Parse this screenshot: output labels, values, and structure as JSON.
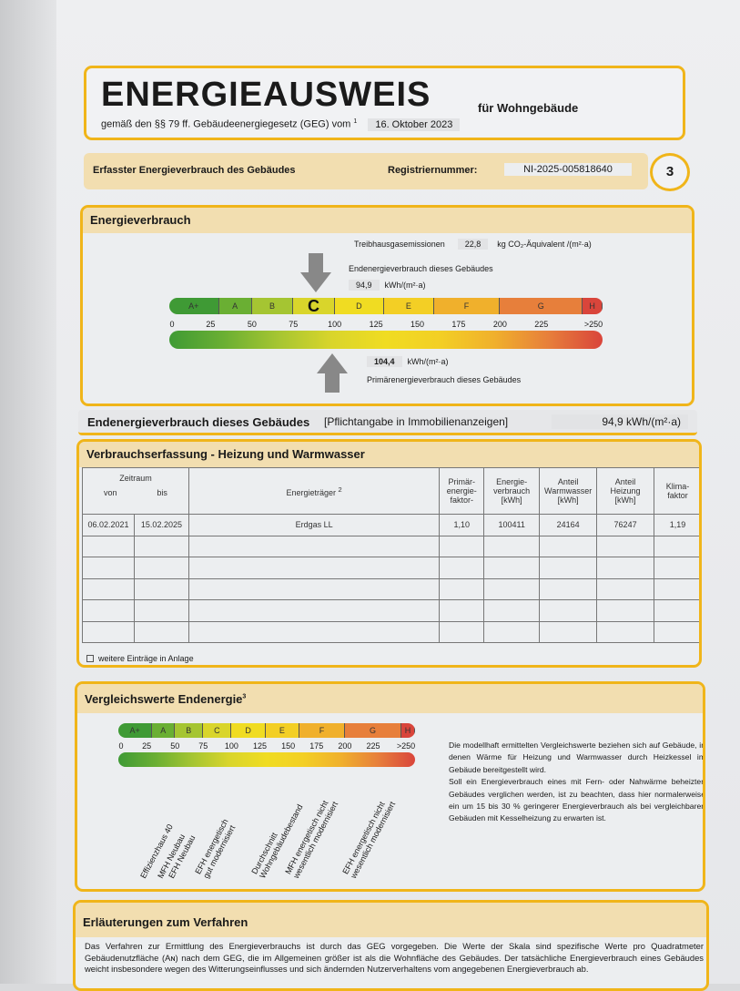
{
  "header": {
    "title": "ENERGIEAUSWEIS",
    "subtitle": "für Wohngebäude",
    "law": "gemäß den §§ 79 ff. Gebäudeenergiegesetz (GEG) vom",
    "law_footnote": "1",
    "date": "16. Oktober 2023"
  },
  "regbar": {
    "label": "Erfasster Energieverbrauch des Gebäudes",
    "reg_label": "Registriernummer:",
    "reg_value": "NI-2025-005818640",
    "page": "3"
  },
  "energy": {
    "title": "Energieverbrauch",
    "ghg_label": "Treibhausgasemissionen",
    "ghg_value": "22,8",
    "ghg_unit": "kg CO₂-Äquivalent /(m²·a)",
    "end_label": "Endenergieverbrauch dieses Gebäudes",
    "end_value": "94,9",
    "end_unit": "kWh/(m²·a)",
    "primary_value": "104,4",
    "primary_unit": "kWh/(m²·a)",
    "primary_label": "Primärenergieverbrauch dieses Gebäudes",
    "end_numeric": 94.9,
    "primary_numeric": 104.4,
    "current_class": "C"
  },
  "scale": {
    "classes": [
      {
        "label": "A+",
        "from": 0,
        "to": 30,
        "color": "#3f9a35"
      },
      {
        "label": "A",
        "from": 30,
        "to": 50,
        "color": "#6aaf33"
      },
      {
        "label": "B",
        "from": 50,
        "to": 75,
        "color": "#a5c532"
      },
      {
        "label": "C",
        "from": 75,
        "to": 100,
        "color": "#d9d52b"
      },
      {
        "label": "D",
        "from": 100,
        "to": 130,
        "color": "#f0dc22"
      },
      {
        "label": "E",
        "from": 130,
        "to": 160,
        "color": "#f3cf25"
      },
      {
        "label": "F",
        "from": 160,
        "to": 200,
        "color": "#f0b02c"
      },
      {
        "label": "G",
        "from": 200,
        "to": 250,
        "color": "#e77f3b"
      },
      {
        "label": "H",
        "from": 250,
        "to": 262,
        "color": "#d9453b"
      }
    ],
    "ticks": [
      "0",
      "25",
      "50",
      "75",
      "100",
      "125",
      "150",
      "175",
      "200",
      "225",
      ">250"
    ]
  },
  "endline": {
    "label": "Endenergieverbrauch dieses Gebäudes",
    "note": "[Pflichtangabe in Immobilienanzeigen]",
    "value": "94,9 kWh/(m²·a)"
  },
  "consumption": {
    "title": "Verbrauchserfassung - Heizung und Warmwasser",
    "headers": {
      "period": "Zeitraum",
      "from": "von",
      "to": "bis",
      "carrier": "Energieträger",
      "carrier_fn": "2",
      "pef": "Primär-\nenergie-\nfaktor-",
      "use": "Energie-\nverbrauch\n[kWh]",
      "ww": "Anteil\nWarmwasser\n[kWh]",
      "heat": "Anteil\nHeizung\n[kWh]",
      "climate": "Klima-\nfaktor"
    },
    "rows": [
      [
        "06.02.2021",
        "15.02.2025",
        "Erdgas LL",
        "1,10",
        "100411",
        "24164",
        "76247",
        "1,19"
      ],
      [
        "",
        "",
        "",
        "",
        "",
        "",
        "",
        ""
      ],
      [
        "",
        "",
        "",
        "",
        "",
        "",
        "",
        ""
      ],
      [
        "",
        "",
        "",
        "",
        "",
        "",
        "",
        ""
      ],
      [
        "",
        "",
        "",
        "",
        "",
        "",
        "",
        ""
      ],
      [
        "",
        "",
        "",
        "",
        "",
        "",
        "",
        ""
      ]
    ],
    "more": "weitere Einträge in Anlage"
  },
  "compare": {
    "title": "Vergleichswerte Endenergie",
    "title_fn": "3",
    "refs": [
      {
        "label": "Effizienzhaus 40",
        "value": 30
      },
      {
        "label": "MFH Neubau",
        "value": 45
      },
      {
        "label": "EFH Neubau",
        "value": 55
      },
      {
        "label": "EFH energetisch\ngut modernisiert",
        "value": 85
      },
      {
        "label": "Durchschnitt\nWohngebäudebestand",
        "value": 135
      },
      {
        "label": "MFH energetisch nicht\nwesentlich modernisiert",
        "value": 165
      },
      {
        "label": "EFH energetisch nicht\nwesentlich modernisiert",
        "value": 215
      }
    ],
    "text1": "Die modellhaft ermittelten Vergleichswerte beziehen sich auf Gebäude, in denen Wärme für Heizung und Warmwasser durch Heizkessel im Gebäude bereitgestellt wird.",
    "text2": "Soll ein Energieverbrauch eines mit Fern- oder Nahwärme beheizten Gebäudes verglichen werden, ist zu beachten, dass hier normalerweise ein um 15 bis 30 % geringerer Energieverbrauch als bei vergleichbaren Gebäuden mit Kesselheizung zu erwarten ist."
  },
  "explain": {
    "title": "Erläuterungen zum Verfahren",
    "text": "Das Verfahren zur Ermittlung des Energieverbrauchs ist durch das GEG vorgegeben. Die Werte der Skala sind spezifische Werte pro Quadratmeter Gebäudenutzfläche (Aɴ) nach dem GEG, die im Allgemeinen größer ist als die Wohnfläche des Gebäudes. Der tatsächliche Energieverbrauch eines Gebäudes weicht insbesondere wegen des Witterungseinflusses und sich ändernden Nutzerverhaltens vom angegebenen Energieverbrauch ab."
  },
  "colors": {
    "border": "#f0b51a",
    "header_fill": "#f2deb0"
  }
}
